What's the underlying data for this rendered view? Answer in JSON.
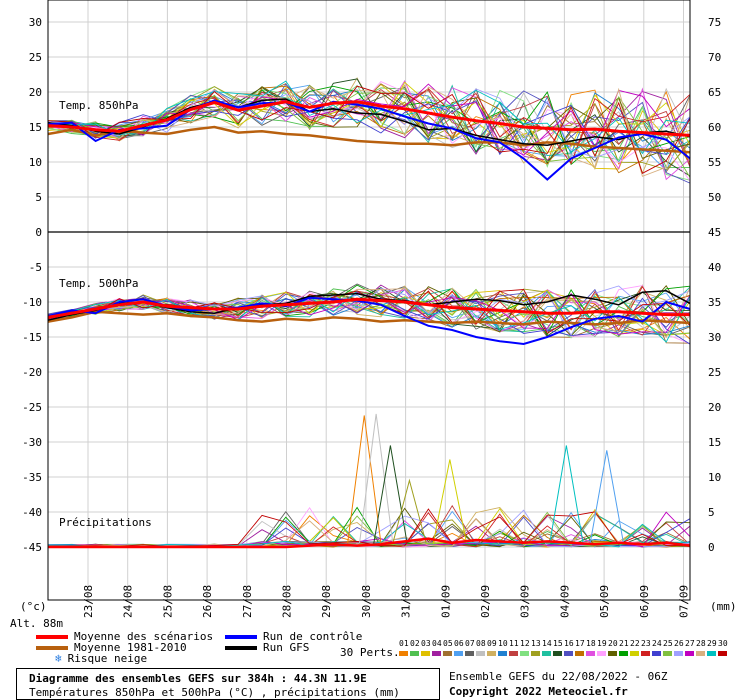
{
  "chart_data": {
    "type": "line",
    "title": "Diagramme des ensembles GEFS sur 384h : 44.3N 11.9E",
    "subtitle": "Températures 850hPa et 500hPa (°C) , précipitations (mm)",
    "altitude_label": "Alt. 88m",
    "left_unit": "(°c)",
    "right_unit": "(mm)",
    "x_dates": [
      "23/08",
      "24/08",
      "25/08",
      "26/08",
      "27/08",
      "28/08",
      "29/08",
      "30/08",
      "31/08",
      "01/09",
      "02/09",
      "03/09",
      "04/09",
      "05/09",
      "06/09",
      "07/09"
    ],
    "left_ticks": [
      "30",
      "25",
      "20",
      "15",
      "10",
      "5",
      "0",
      "-5",
      "-10",
      "-15",
      "-20",
      "-25",
      "-30",
      "-35",
      "-40",
      "-45"
    ],
    "right_ticks_upper": [
      "75",
      "70",
      "65",
      "60",
      "55",
      "50"
    ],
    "right_ticks_lower": [
      "45",
      "40",
      "35",
      "30",
      "25",
      "20",
      "15",
      "10",
      "5",
      "0"
    ],
    "panels": [
      {
        "name": "Temp. 850hPa",
        "ylim": [
          0,
          30
        ]
      },
      {
        "name": "Temp. 500hPa",
        "ylim": [
          -45,
          -5
        ]
      },
      {
        "name": "Précipitations",
        "ylim": [
          0,
          20
        ]
      }
    ],
    "t850_mean": [
      15.2,
      15.0,
      14.6,
      14.4,
      15.2,
      16.0,
      17.5,
      18.5,
      17.4,
      18.0,
      18.6,
      17.8,
      18.4,
      18.6,
      18.0,
      17.6,
      17.0,
      16.4,
      15.9,
      15.5,
      15.0,
      14.8,
      14.6,
      14.7,
      14.4,
      14.2,
      14.0,
      13.8
    ],
    "t850_clim": [
      14.0,
      14.6,
      13.8,
      14.4,
      14.2,
      14.0,
      14.6,
      15.0,
      14.2,
      14.4,
      14.0,
      13.8,
      13.4,
      13.0,
      12.8,
      12.6,
      12.6,
      12.4,
      12.8,
      12.8,
      12.4,
      12.8,
      12.6,
      12.2,
      12.0,
      11.8,
      11.6,
      11.4
    ],
    "t850_control": [
      15.4,
      15.6,
      13.0,
      14.6,
      14.8,
      15.2,
      17.5,
      18.8,
      17.8,
      18.4,
      18.5,
      17.2,
      18.6,
      18.2,
      17.6,
      16.5,
      15.5,
      14.8,
      13.4,
      12.8,
      10.5,
      7.5,
      10.5,
      12.0,
      13.5,
      14.0,
      13.2,
      10.5
    ],
    "t850_gfs": [
      15.6,
      15.2,
      14.4,
      14.0,
      15.0,
      16.2,
      17.8,
      18.6,
      17.8,
      18.8,
      19.0,
      17.2,
      17.6,
      17.0,
      16.8,
      15.8,
      14.6,
      14.8,
      13.8,
      13.2,
      12.6,
      12.4,
      13.0,
      13.6,
      13.2,
      14.2,
      14.4,
      13.6
    ],
    "t500_mean": [
      -12.2,
      -11.6,
      -11.0,
      -10.4,
      -10.0,
      -10.6,
      -10.8,
      -11.0,
      -11.0,
      -10.6,
      -10.4,
      -10.2,
      -10.0,
      -9.6,
      -9.8,
      -10.0,
      -10.4,
      -10.8,
      -11.0,
      -11.2,
      -11.4,
      -11.6,
      -11.6,
      -11.4,
      -11.4,
      -11.6,
      -11.8,
      -11.8
    ],
    "t500_clim": [
      -12.8,
      -12.2,
      -11.4,
      -11.6,
      -11.8,
      -11.6,
      -12.0,
      -12.2,
      -12.6,
      -12.8,
      -12.4,
      -12.6,
      -12.2,
      -12.4,
      -12.8,
      -12.6,
      -12.8,
      -13.0,
      -12.8,
      -13.0,
      -13.2,
      -12.8,
      -13.0,
      -13.2,
      -13.0,
      -12.6,
      -12.8,
      -13.0
    ],
    "t500_control": [
      -12.0,
      -11.2,
      -11.6,
      -10.0,
      -9.6,
      -10.6,
      -11.2,
      -11.0,
      -10.8,
      -10.2,
      -10.6,
      -9.4,
      -9.6,
      -9.8,
      -10.4,
      -12.0,
      -13.4,
      -14.0,
      -15.0,
      -15.6,
      -16.0,
      -15.0,
      -13.6,
      -12.4,
      -12.0,
      -12.8,
      -10.0,
      -11.0
    ],
    "t500_gfs": [
      -12.6,
      -11.8,
      -11.2,
      -10.2,
      -10.0,
      -10.8,
      -11.4,
      -11.6,
      -10.8,
      -10.4,
      -10.2,
      -9.2,
      -9.0,
      -8.8,
      -9.6,
      -9.8,
      -10.4,
      -10.0,
      -9.6,
      -9.8,
      -10.4,
      -10.0,
      -9.0,
      -9.6,
      -10.4,
      -8.6,
      -8.4,
      -10.2
    ],
    "precip_mean": [
      0,
      0,
      0,
      0,
      0,
      0,
      0,
      0,
      0,
      0,
      0,
      0.2,
      0.4,
      0.2,
      0.4,
      0.8,
      1.2,
      0.6,
      1.0,
      0.8,
      0.6,
      0.8,
      0.6,
      0.4,
      0.6,
      0.4,
      0.6,
      0.2
    ],
    "precip_peaks": [
      {
        "x": 13.3,
        "v": 18.8
      },
      {
        "x": 13.8,
        "v": 19.0
      },
      {
        "x": 14.4,
        "v": 14.5
      },
      {
        "x": 16.9,
        "v": 12.5
      },
      {
        "x": 21.8,
        "v": 14.5
      },
      {
        "x": 23.5,
        "v": 13.8
      },
      {
        "x": 15.2,
        "v": 9.5
      }
    ],
    "perturbations": 30,
    "perturbation_labels": [
      "01",
      "02",
      "03",
      "04",
      "05",
      "06",
      "07",
      "08",
      "09",
      "10",
      "11",
      "12",
      "13",
      "14",
      "15",
      "16",
      "17",
      "18",
      "19",
      "20",
      "21",
      "22",
      "23",
      "24",
      "25",
      "26",
      "27",
      "28",
      "29",
      "30"
    ],
    "perturbation_colors": [
      "#f08000",
      "#50c050",
      "#e0c000",
      "#a020a0",
      "#a07030",
      "#50a0f0",
      "#606060",
      "#c0c0c0",
      "#d0b060",
      "#2080d0",
      "#c04040",
      "#80e080",
      "#a0a020",
      "#20c0a0",
      "#205020",
      "#5050c0",
      "#c07000",
      "#e050e0",
      "#ffa0ff",
      "#606000",
      "#00a000",
      "#d0d000",
      "#d02020",
      "#4040d0",
      "#80c040",
      "#a0a0ff",
      "#c000c0",
      "#d8b080",
      "#00c0c0",
      "#c00000"
    ]
  },
  "legend": {
    "items": [
      {
        "label": "Moyenne des scénarios",
        "color": "#ff0000"
      },
      {
        "label": "Moyenne 1981-2010",
        "color": "#b8600e"
      },
      {
        "label": "Run de contrôle",
        "color": "#0000ff"
      },
      {
        "label": "Run GFS",
        "color": "#000000"
      }
    ],
    "snow_label": "Risque neige",
    "snow_icon": "snowflake-icon",
    "perts_label": "30 Perts."
  },
  "footer": {
    "title": "Diagramme des ensembles GEFS sur 384h : 44.3N 11.9E",
    "subtitle": "Températures 850hPa et 500hPa (°C) , précipitations (mm)",
    "run": "Ensemble GEFS du 22/08/2022 - 06Z",
    "copyright": "Copyright 2022 Meteociel.fr"
  }
}
